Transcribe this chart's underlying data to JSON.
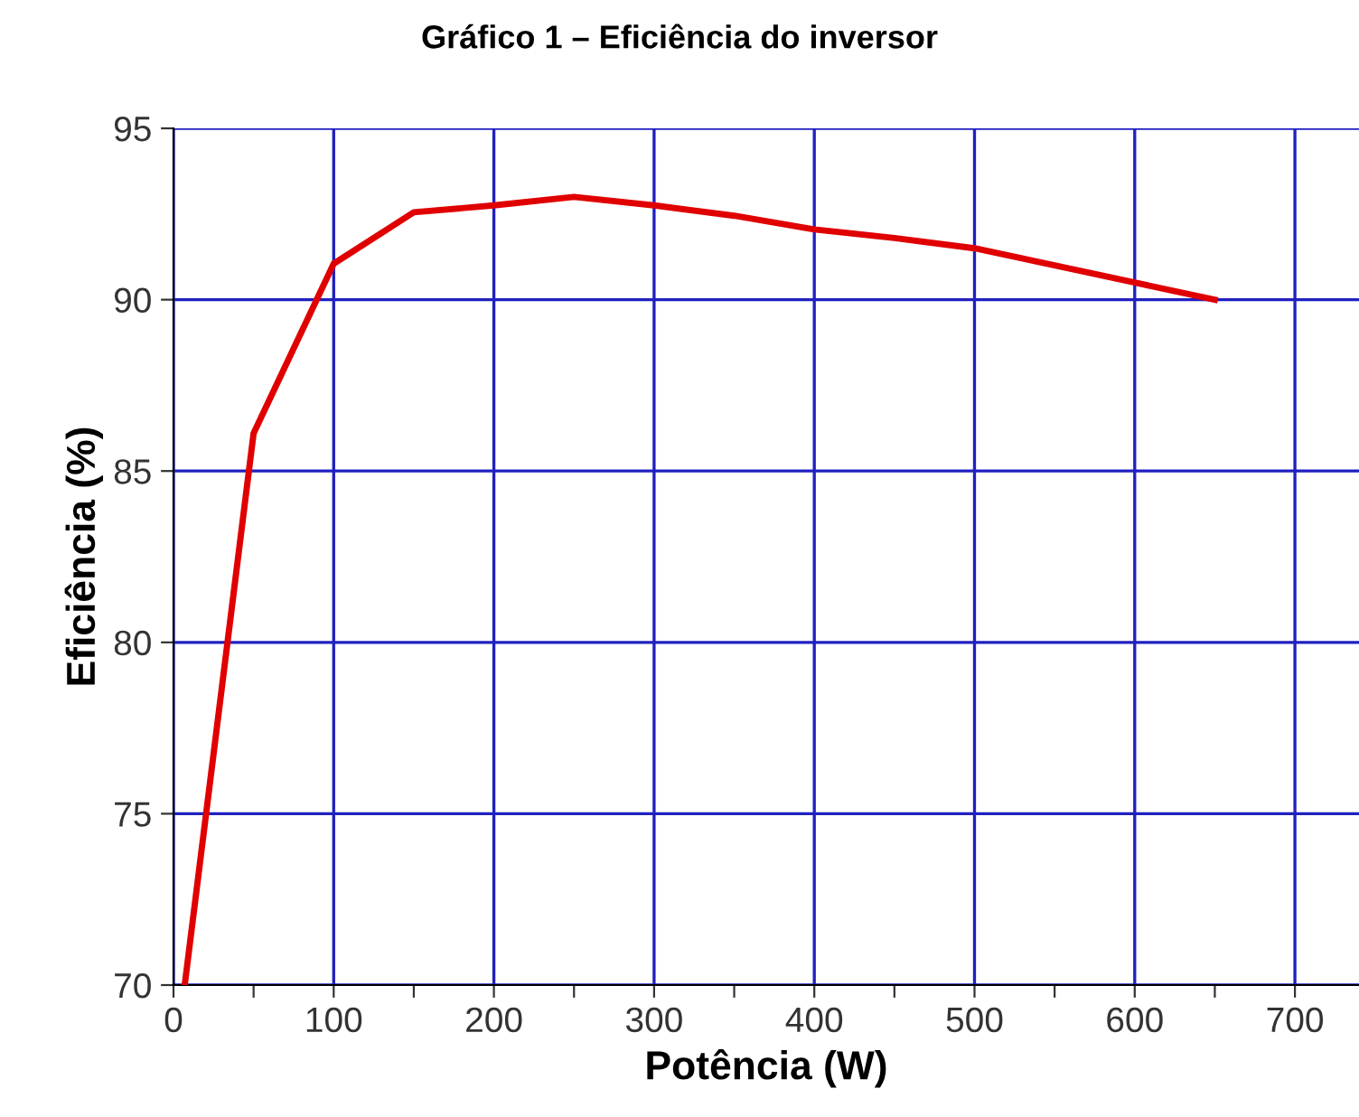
{
  "chart_data": {
    "type": "line",
    "title": "Gráfico 1 – Eficiência do inversor",
    "xlabel": "Potência (W)",
    "ylabel": "Eficiência (%)",
    "x": [
      7,
      50,
      100,
      150,
      200,
      250,
      300,
      350,
      400,
      450,
      500,
      550,
      600,
      650
    ],
    "series": [
      {
        "color": "#e00000",
        "values": [
          70,
          86.1,
          91.05,
          92.55,
          92.75,
          93.0,
          92.75,
          92.45,
          92.05,
          91.8,
          91.5,
          91.0,
          90.5,
          90.0
        ]
      }
    ],
    "xlim": [
      0,
      740
    ],
    "ylim": [
      70,
      95
    ],
    "xticks": [
      0,
      {
        "value": 50,
        "label": null
      },
      100,
      {
        "value": 150,
        "label": null
      },
      200,
      {
        "value": 250,
        "label": null
      },
      300,
      {
        "value": 350,
        "label": null
      },
      400,
      {
        "value": 450,
        "label": null
      },
      500,
      {
        "value": 550,
        "label": null
      },
      600,
      {
        "value": 650,
        "label": null
      },
      700
    ],
    "yticks": [
      70,
      75,
      80,
      85,
      90,
      95
    ],
    "grid": true,
    "marker": "none",
    "line_style": "solid",
    "legend": false
  }
}
